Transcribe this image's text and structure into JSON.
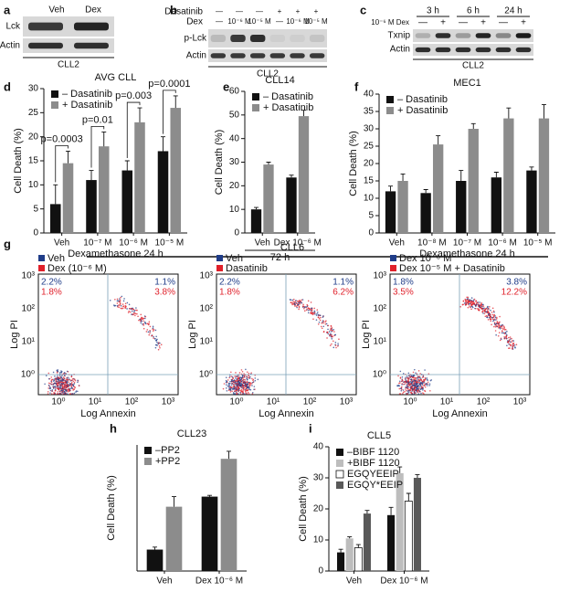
{
  "panel_labels": [
    "a",
    "b",
    "c",
    "d",
    "e",
    "f",
    "g",
    "h",
    "i"
  ],
  "blots": [
    {
      "columns": [
        "Veh",
        "Dex"
      ],
      "rows": [
        "Lck",
        "Actin"
      ],
      "cell_line": "CLL2"
    },
    {
      "conditions": [
        {
          "name": "Dasatinib",
          "values": [
            "—",
            "—",
            "—",
            "+",
            "+",
            "+"
          ]
        },
        {
          "name": "Dex",
          "values": [
            "—",
            "10⁻⁶ M",
            "10⁻⁵ M",
            "—",
            "10⁻⁶ M",
            "10⁻⁵ M"
          ]
        }
      ],
      "rows": [
        "p-Lck",
        "Actin"
      ],
      "cell_line": "CLL2"
    },
    {
      "times": [
        "3 h",
        "6 h",
        "24 h"
      ],
      "condition": "10⁻⁶ M Dex",
      "signs": [
        "—",
        "+",
        "—",
        "+",
        "—",
        "+"
      ],
      "rows": [
        "Txnip",
        "Actin"
      ],
      "cell_line": "CLL2"
    }
  ],
  "flow": {
    "title": "CLL6",
    "xlabel": "Log Annexin",
    "ylabel": "Log PI",
    "ticks": [
      "10⁰",
      "10¹",
      "10²",
      "10³"
    ],
    "plots": [
      {
        "legend": [
          {
            "name": "Veh",
            "color": "#1f3c88"
          },
          {
            "name": "Dex (10⁻⁶ M)",
            "color": "#e0202a"
          }
        ],
        "upper_left": [
          "2.2%",
          "1.8%"
        ],
        "upper_right": [
          "1.1%",
          "3.8%"
        ]
      },
      {
        "legend": [
          {
            "name": "Veh",
            "color": "#1f3c88"
          },
          {
            "name": "Dasatinib",
            "color": "#e0202a"
          }
        ],
        "upper_left": [
          "2.2%",
          "1.8%"
        ],
        "upper_right": [
          "1.1%",
          "6.2%"
        ]
      },
      {
        "legend": [
          {
            "name": "Dex 10⁻⁶ M",
            "color": "#1f3c88"
          },
          {
            "name": "Dex 10⁻⁵ M + Dasatinib",
            "color": "#e0202a"
          }
        ],
        "upper_left": [
          "1.8%",
          "3.5%"
        ],
        "upper_right": [
          "3.8%",
          "12.2%"
        ]
      }
    ]
  },
  "chart_data": [
    {
      "type": "bar",
      "title": "AVG CLL",
      "ylabel": "Cell Death (%)",
      "xlabel": "Dexamethasone 24 h",
      "categories": [
        "Veh",
        "10⁻⁷ M",
        "10⁻⁶ M",
        "10⁻⁵ M"
      ],
      "series": [
        {
          "name": "– Dasatinib",
          "color": "#111111",
          "values": [
            6,
            11,
            13,
            17
          ],
          "errors": [
            4,
            2,
            2,
            3
          ]
        },
        {
          "name": "+ Dasatinib",
          "color": "#8c8c8c",
          "values": [
            14.5,
            18,
            23,
            26
          ],
          "errors": [
            2.5,
            3,
            3,
            2.5
          ]
        }
      ],
      "annotations": [
        "p=0.0003",
        "p=0.01",
        "p=0.003",
        "p=0.0001"
      ],
      "ylim": [
        0,
        30
      ],
      "yticks": [
        0,
        5,
        10,
        15,
        20,
        25,
        30
      ],
      "legend": "upper left"
    },
    {
      "type": "bar",
      "title": "CLL14",
      "ylabel": "Cell Death (%)",
      "xlabel": "72 h",
      "categories": [
        "Veh",
        "Dex 10⁻⁶ M"
      ],
      "series": [
        {
          "name": "– Dasatinib",
          "color": "#111111",
          "values": [
            10,
            23.5
          ],
          "errors": [
            0.8,
            1
          ]
        },
        {
          "name": "+ Dasatinib",
          "color": "#8c8c8c",
          "values": [
            29,
            49.5
          ],
          "errors": [
            1,
            2.5
          ]
        }
      ],
      "ylim": [
        0,
        60
      ],
      "yticks": [
        0,
        10,
        20,
        30,
        40,
        50,
        60
      ],
      "legend": "upper left"
    },
    {
      "type": "bar",
      "title": "MEC1",
      "ylabel": "Cell Death (%)",
      "xlabel": "Dexamethasone 24 h",
      "categories": [
        "Veh",
        "10⁻⁸ M",
        "10⁻⁷ M",
        "10⁻⁶ M",
        "10⁻⁵ M"
      ],
      "series": [
        {
          "name": "– Dasatinib",
          "color": "#111111",
          "values": [
            12,
            11.5,
            15,
            16,
            18
          ],
          "errors": [
            1.5,
            1,
            3,
            1.5,
            1
          ]
        },
        {
          "name": "+ Dasatinib",
          "color": "#8c8c8c",
          "values": [
            15,
            25.5,
            30,
            33,
            33
          ],
          "errors": [
            2,
            2.5,
            1.5,
            3,
            4
          ]
        }
      ],
      "ylim": [
        0,
        40
      ],
      "yticks": [
        0,
        5,
        10,
        15,
        20,
        25,
        30,
        35,
        40
      ],
      "legend": "upper left"
    },
    {
      "type": "bar",
      "title": "CLL23",
      "ylabel": "Cell Death (%)",
      "categories": [
        "Veh",
        "Dex 10⁻⁶ M"
      ],
      "series": [
        {
          "name": "–PP2",
          "color": "#111111",
          "values": [
            8.5,
            29.5
          ],
          "errors": [
            1,
            0.5
          ]
        },
        {
          "name": "+PP2",
          "color": "#8c8c8c",
          "values": [
            25.5,
            44.5
          ],
          "errors": [
            4,
            3
          ]
        }
      ],
      "ylim": [
        0,
        50
      ],
      "legend": "upper left"
    },
    {
      "type": "bar",
      "title": "CLL5",
      "ylabel": "Cell Death (%)",
      "categories": [
        "Veh",
        "Dex 10⁻⁶ M"
      ],
      "series": [
        {
          "name": "–BIBF 1120",
          "color": "#111111",
          "values": [
            6,
            18
          ],
          "errors": [
            1,
            2.5
          ]
        },
        {
          "name": "+BIBF 1120",
          "color": "#bdbdbd",
          "values": [
            10.5,
            31.5
          ],
          "errors": [
            0.5,
            2
          ]
        },
        {
          "name": "EGQYEEIP",
          "color": "#ffffff",
          "values": [
            7.5,
            22.5
          ],
          "errors": [
            1,
            2.5
          ]
        },
        {
          "name": "EGQY*EEIP",
          "color": "#595959",
          "values": [
            18.5,
            30
          ],
          "errors": [
            1,
            1
          ]
        }
      ],
      "ylim": [
        0,
        40
      ],
      "yticks": [
        0,
        10,
        20,
        30,
        40
      ],
      "legend": "upper left"
    }
  ]
}
